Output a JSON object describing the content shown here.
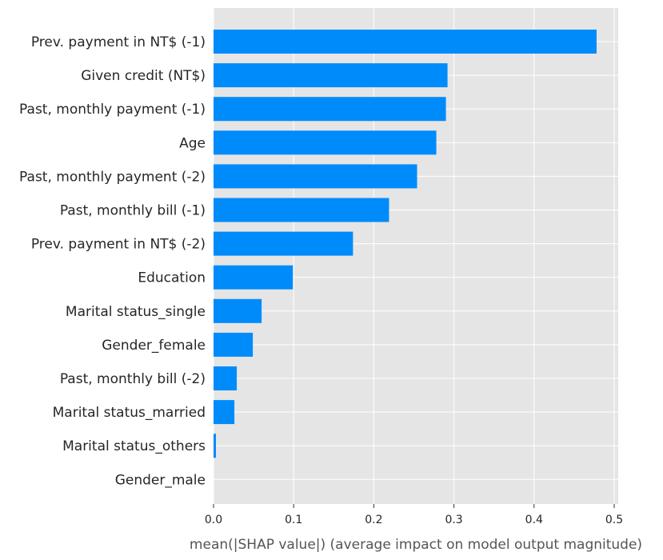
{
  "chart_data": {
    "type": "bar",
    "orientation": "horizontal",
    "title": "",
    "xlabel": "mean(|SHAP value|) (average impact on model output magnitude)",
    "ylabel": "",
    "xlim": [
      0,
      0.505
    ],
    "xticks": [
      0.0,
      0.1,
      0.2,
      0.3,
      0.4,
      0.5
    ],
    "xtick_labels": [
      "0.0",
      "0.1",
      "0.2",
      "0.3",
      "0.4",
      "0.5"
    ],
    "grid": true,
    "background": "#e5e5e5",
    "grid_color": "#ffffff",
    "bar_color": "#008bfb",
    "categories": [
      "Prev. payment in NT$ (-1)",
      "Given credit (NT$)",
      "Past, monthly payment (-1)",
      "Age",
      "Past, monthly payment (-2)",
      "Past, monthly bill (-1)",
      "Prev. payment in NT$ (-2)",
      "Education",
      "Marital status_single",
      "Gender_female",
      "Past, monthly bill (-2)",
      "Marital status_married",
      "Marital status_others",
      "Gender_male"
    ],
    "values": [
      0.478,
      0.292,
      0.29,
      0.278,
      0.254,
      0.219,
      0.174,
      0.099,
      0.06,
      0.049,
      0.029,
      0.026,
      0.003,
      0.0
    ]
  }
}
